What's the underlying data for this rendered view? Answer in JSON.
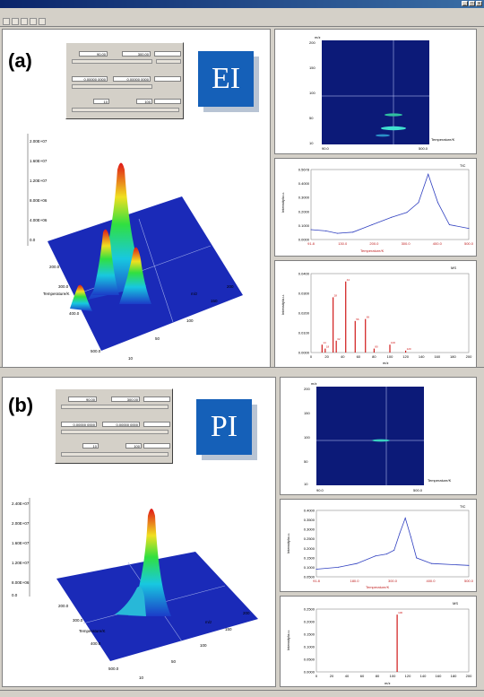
{
  "window": {
    "title": ""
  },
  "menu": [],
  "panel_a": {
    "label": "(a)",
    "badge": "EI",
    "dialog": {
      "row1": [
        "90.00",
        "300.00"
      ],
      "row2": [
        "0.00000 0000",
        "0.00000 0000"
      ],
      "row3": [
        "10",
        "100"
      ]
    },
    "surface_axis": {
      "z_ticks": [
        "2.00E+07",
        "1.60E+07",
        "1.20E+07",
        "8.00E+06",
        "4.00E+06",
        "0.0"
      ],
      "temp_label": "Temperature/K",
      "temp_ticks": [
        "500.0",
        "400.0",
        "300.0",
        "200.0"
      ],
      "mz_label": "m/z",
      "mz_ticks": [
        "200",
        "150",
        "100",
        "50",
        "10"
      ]
    },
    "heatmap": {
      "x_min": "90.0",
      "x_max": "500.0",
      "x_label": "Temperature/K",
      "y_ticks": [
        "200",
        "150",
        "100",
        "50",
        "10"
      ],
      "corner": "m/z"
    },
    "tic": {
      "title": "TIC",
      "y_label": "Intensity/a.u.",
      "x_label": "Temperature/K",
      "y_ticks": [
        "0.5678",
        "0.4000",
        "0.3000",
        "0.2000",
        "0.1000",
        "0.0000"
      ],
      "x_ticks": [
        "91.8",
        "130.0",
        "200.0",
        "300.0",
        "400.0",
        "500.0"
      ]
    },
    "ms": {
      "title": "MS",
      "y_label": "Intensity/a.u.",
      "x_label": "m/z",
      "y_ticks": [
        "0.0400",
        "0.0300",
        "0.0200",
        "0.0100",
        "0.0000"
      ],
      "x_ticks": [
        "0",
        "20",
        "40",
        "60",
        "80",
        "100",
        "120",
        "140",
        "160",
        "180",
        "200"
      ]
    }
  },
  "panel_b": {
    "label": "(b)",
    "badge": "PI",
    "dialog": {
      "row1": [
        "90.00",
        "300.00"
      ],
      "row2": [
        "0.00000 0000",
        "0.00000 0000"
      ],
      "row3": [
        "10",
        "100"
      ]
    },
    "surface_axis": {
      "z_ticks": [
        "2.40E+07",
        "2.00E+07",
        "1.60E+07",
        "1.20E+07",
        "8.00E+06",
        "0.0"
      ],
      "temp_label": "Temperature/K",
      "temp_ticks": [
        "500.0",
        "400.0",
        "300.0",
        "200.0"
      ],
      "mz_label": "m/z",
      "mz_ticks": [
        "200",
        "150",
        "100",
        "50",
        "10"
      ]
    },
    "heatmap": {
      "x_min": "90.0",
      "x_max": "500.0",
      "x_label": "Temperature/K",
      "y_ticks": [
        "200",
        "150",
        "100",
        "50",
        "10"
      ],
      "corner": "m/z"
    },
    "tic": {
      "title": "TIC",
      "y_label": "Intensity/a.u.",
      "x_label": "Temperature/K",
      "y_ticks": [
        "0.4000",
        "0.3500",
        "0.3000",
        "0.2500",
        "0.2000",
        "0.1500",
        "0.1000",
        "0.0500"
      ],
      "x_ticks": [
        "91.8",
        "180.0",
        "300.0",
        "400.0",
        "500.0"
      ]
    },
    "ms": {
      "title": "MS",
      "y_label": "Intensity/a.u.",
      "x_label": "m/z",
      "y_ticks": [
        "0.2500",
        "0.2000",
        "0.1500",
        "0.1000",
        "0.0500",
        "0.0000"
      ],
      "x_ticks": [
        "0",
        "20",
        "40",
        "60",
        "80",
        "100",
        "120",
        "140",
        "160",
        "180",
        "200"
      ]
    }
  },
  "chart_data": [
    {
      "type": "line",
      "panel": "a",
      "name": "TIC",
      "x": [
        91.8,
        130,
        160,
        200,
        250,
        300,
        340,
        370,
        395,
        420,
        450,
        500
      ],
      "values": [
        0.08,
        0.07,
        0.05,
        0.06,
        0.12,
        0.18,
        0.22,
        0.3,
        0.53,
        0.3,
        0.12,
        0.09
      ],
      "ylim": [
        0,
        0.5678
      ]
    },
    {
      "type": "bar",
      "panel": "a",
      "name": "MS",
      "x": [
        14,
        18,
        28,
        32,
        44,
        56,
        69,
        80,
        100,
        120
      ],
      "values": [
        0.004,
        0.002,
        0.028,
        0.006,
        0.036,
        0.016,
        0.017,
        0.002,
        0.004,
        0.001
      ],
      "ylim": [
        0,
        0.04
      ]
    },
    {
      "type": "line",
      "panel": "b",
      "name": "TIC",
      "x": [
        91.8,
        150,
        200,
        250,
        280,
        300,
        315,
        330,
        345,
        360,
        400,
        500
      ],
      "values": [
        0.09,
        0.1,
        0.12,
        0.16,
        0.17,
        0.19,
        0.28,
        0.36,
        0.26,
        0.15,
        0.12,
        0.11
      ],
      "ylim": [
        0.05,
        0.4
      ]
    },
    {
      "type": "bar",
      "panel": "b",
      "name": "MS",
      "x": [
        106
      ],
      "values": [
        0.228
      ],
      "ylim": [
        0,
        0.25
      ]
    }
  ]
}
